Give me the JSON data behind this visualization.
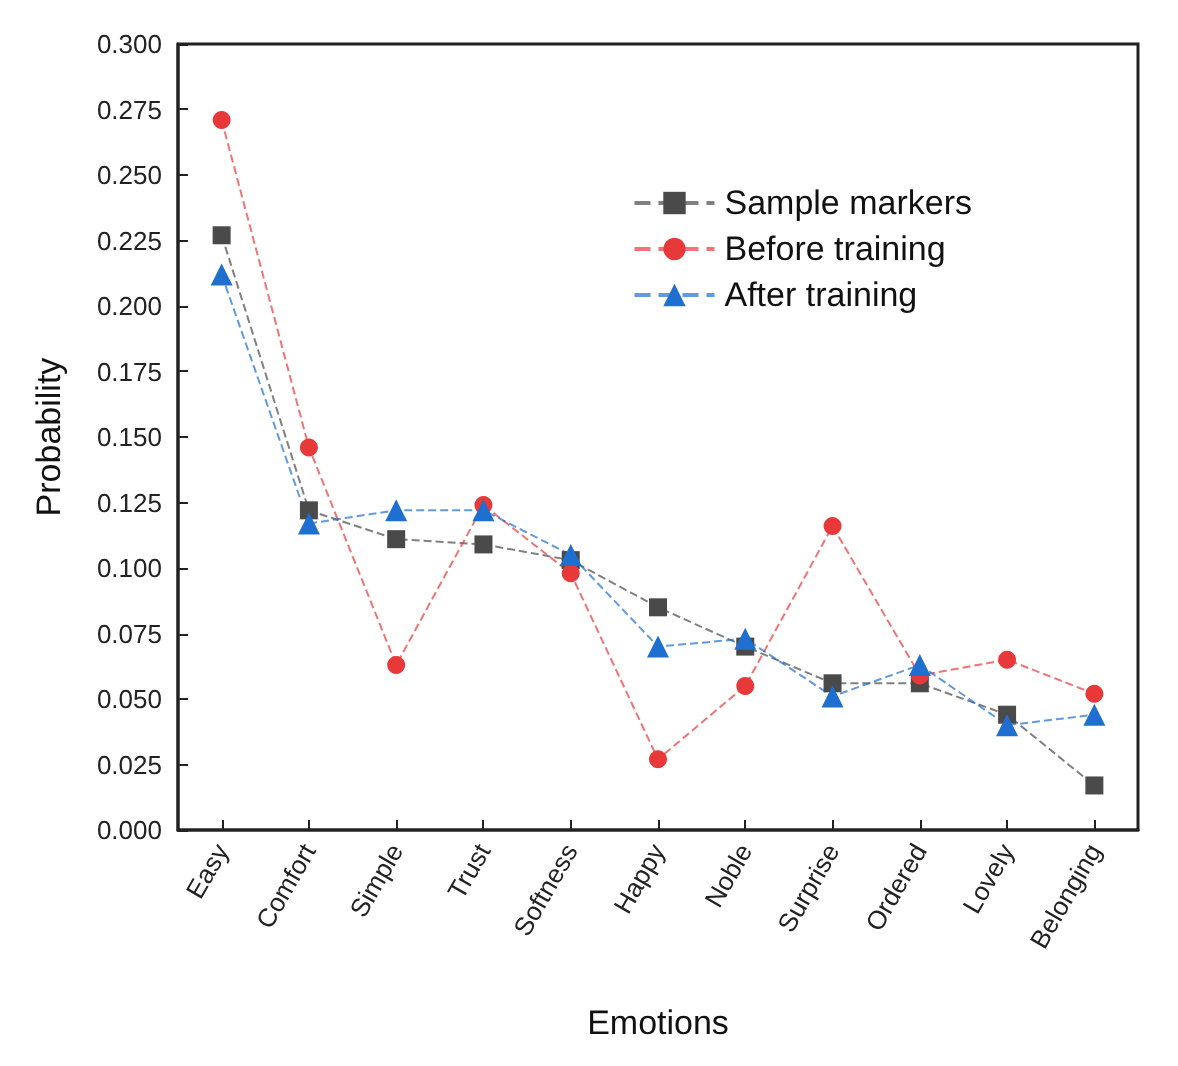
{
  "chart_data": {
    "type": "line",
    "xlabel": "Emotions",
    "ylabel": "Probability",
    "categories": [
      "Easy",
      "Comfort",
      "Simple",
      "Trust",
      "Softness",
      "Happy",
      "Noble",
      "Surprise",
      "Ordered",
      "Lovely",
      "Belonging"
    ],
    "series": [
      {
        "name": "Sample markers",
        "color": "#4a4a4a",
        "marker": "square",
        "values": [
          0.227,
          0.122,
          0.111,
          0.109,
          0.103,
          0.085,
          0.07,
          0.056,
          0.056,
          0.044,
          0.017
        ]
      },
      {
        "name": "Before training",
        "color": "#e8393a",
        "marker": "circle",
        "values": [
          0.271,
          0.146,
          0.063,
          0.124,
          0.098,
          0.027,
          0.055,
          0.116,
          0.059,
          0.065,
          0.052
        ]
      },
      {
        "name": "After training",
        "color": "#1f6fd1",
        "marker": "triangle",
        "values": [
          0.212,
          0.117,
          0.122,
          0.122,
          0.105,
          0.07,
          0.073,
          0.051,
          0.063,
          0.04,
          0.044
        ]
      }
    ],
    "ylim": [
      0,
      0.3
    ],
    "yticks": [
      {
        "value": 0,
        "label": "0.000"
      },
      {
        "value": 0.025,
        "label": "0.025"
      },
      {
        "value": 0.05,
        "label": "0.050"
      },
      {
        "value": 0.075,
        "label": "0.075"
      },
      {
        "value": 0.1,
        "label": "0.100"
      },
      {
        "value": 0.125,
        "label": "0.125"
      },
      {
        "value": 0.15,
        "label": "0.150"
      },
      {
        "value": 0.175,
        "label": "0.175"
      },
      {
        "value": 0.2,
        "label": "0.200"
      },
      {
        "value": 0.225,
        "label": "0.225"
      },
      {
        "value": 0.25,
        "label": "0.250"
      },
      {
        "value": 0.275,
        "label": "0.275"
      },
      {
        "value": 0.3,
        "label": "0.300"
      }
    ],
    "grid": false,
    "legend": "top right",
    "line_style": "dashed"
  }
}
